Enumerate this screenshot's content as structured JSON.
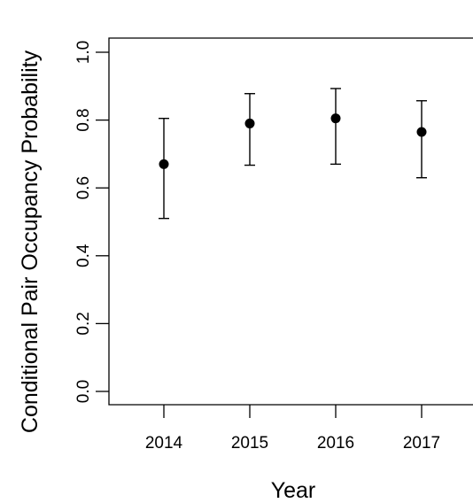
{
  "chart_data": {
    "type": "scatter",
    "title": "",
    "xlabel": "Year",
    "ylabel": "Conditional Pair Occupancy Probability",
    "categories": [
      "2014",
      "2015",
      "2016",
      "2017"
    ],
    "values": [
      0.67,
      0.79,
      0.805,
      0.765
    ],
    "lower": [
      0.51,
      0.667,
      0.67,
      0.63
    ],
    "upper": [
      0.805,
      0.878,
      0.893,
      0.857
    ],
    "ylim": [
      0,
      1
    ],
    "yticks": [
      "0.0",
      "0.2",
      "0.4",
      "0.6",
      "0.8",
      "1.0"
    ],
    "grid": false,
    "colors": {
      "points": "#000000",
      "axes": "#000000"
    }
  }
}
